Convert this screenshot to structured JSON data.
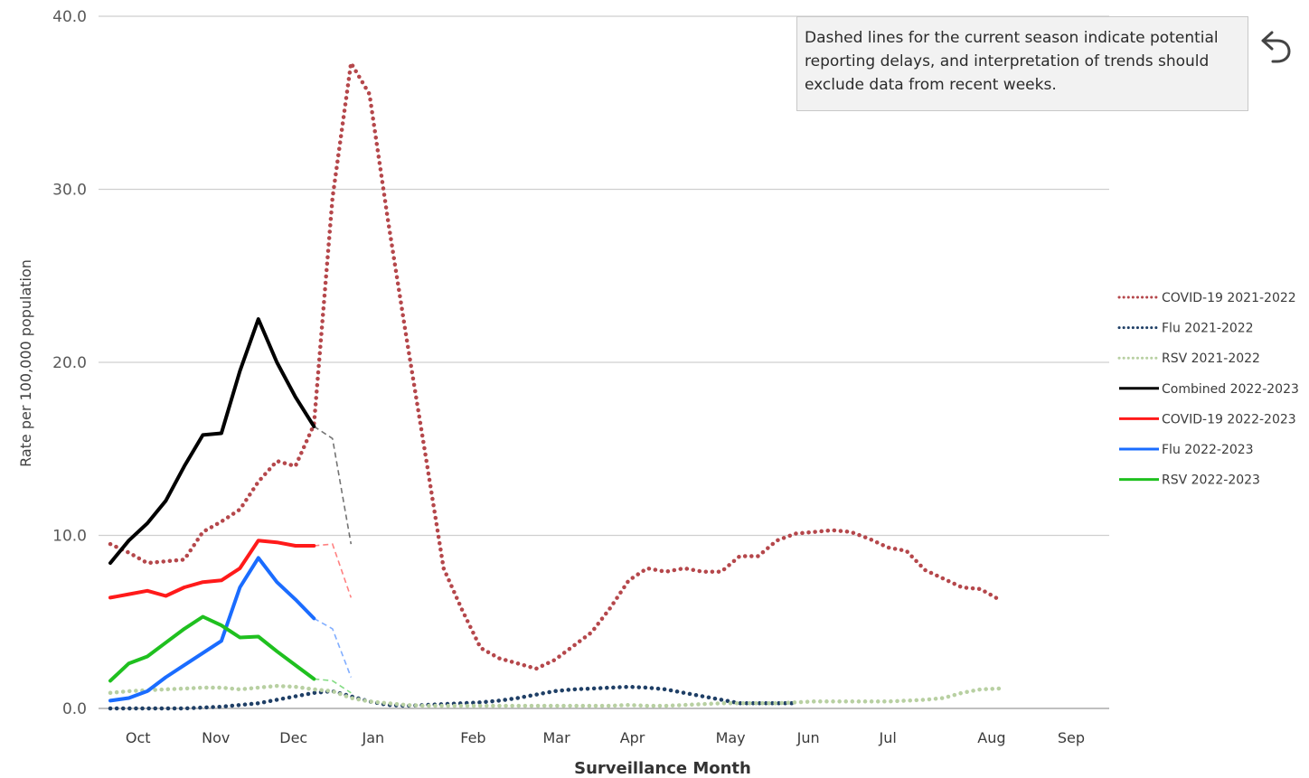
{
  "note": {
    "text": "Dashed lines for the current season indicate potential reporting delays, and interpretation of trends should exclude data from recent weeks."
  },
  "controls": {
    "back_icon": "undo-arrow-icon"
  },
  "chart_data": {
    "type": "line",
    "title": "",
    "xlabel": "Surveillance Month",
    "ylabel": "Rate per 100,000 population",
    "ylim": [
      0,
      40
    ],
    "y_ticks": [
      0,
      10,
      20,
      30,
      40
    ],
    "y_tick_labels": [
      "0.0",
      "10.0",
      "20.0",
      "30.0",
      "40.0"
    ],
    "grid": "horizontal",
    "legend_position": "right",
    "x_axis": {
      "unit": "week of surveillance season",
      "range": [
        0,
        52
      ],
      "months": [
        {
          "label": "Oct",
          "x": 1.5
        },
        {
          "label": "Nov",
          "x": 5.7
        },
        {
          "label": "Dec",
          "x": 9.9
        },
        {
          "label": "Jan",
          "x": 14.2
        },
        {
          "label": "Feb",
          "x": 19.6
        },
        {
          "label": "Mar",
          "x": 24.1
        },
        {
          "label": "Apr",
          "x": 28.2
        },
        {
          "label": "May",
          "x": 33.5
        },
        {
          "label": "Jun",
          "x": 37.7
        },
        {
          "label": "Jul",
          "x": 42.0
        },
        {
          "label": "Aug",
          "x": 47.6
        },
        {
          "label": "Sep",
          "x": 51.9
        }
      ]
    },
    "series": [
      {
        "name": "COVID-19 2021-2022",
        "color": "#b5474b",
        "style": "dotted",
        "x": [
          0,
          1,
          2,
          3,
          4,
          5,
          6,
          7,
          8,
          9,
          10,
          11,
          12,
          13,
          14,
          15,
          16,
          17,
          18,
          19,
          20,
          21,
          22,
          23,
          24,
          25,
          26,
          27,
          28,
          29,
          30,
          31,
          32,
          33,
          34,
          35,
          36,
          37,
          38,
          39,
          40,
          41,
          42,
          43,
          44,
          45,
          46,
          47,
          48,
          49,
          50,
          51,
          52
        ],
        "y": [
          9.5,
          9.0,
          8.4,
          8.5,
          8.6,
          10.2,
          10.8,
          11.5,
          13.1,
          14.3,
          14.0,
          16.4,
          29.5,
          37.3,
          35.5,
          28.2,
          21.4,
          14.8,
          8.1,
          5.7,
          3.5,
          2.9,
          2.6,
          2.3,
          2.8,
          3.6,
          4.4,
          5.8,
          7.4,
          8.1,
          7.9,
          8.1,
          7.9,
          7.9,
          8.8,
          8.8,
          9.7,
          10.1,
          10.2,
          10.3,
          10.2,
          9.8,
          9.3,
          9.1,
          8.0,
          7.5,
          7.0,
          6.9,
          6.3,
          null,
          null,
          null,
          null
        ]
      },
      {
        "name": "Flu 2021-2022",
        "color": "#1f3f66",
        "style": "dotted",
        "x": [
          0,
          1,
          2,
          3,
          4,
          5,
          6,
          7,
          8,
          9,
          10,
          11,
          12,
          13,
          14,
          15,
          16,
          17,
          18,
          19,
          20,
          21,
          22,
          23,
          24,
          25,
          26,
          27,
          28,
          29,
          30,
          31,
          32,
          33,
          34,
          35,
          36,
          37
        ],
        "y": [
          0.0,
          0.0,
          0.0,
          0.0,
          0.0,
          0.05,
          0.1,
          0.2,
          0.3,
          0.5,
          0.7,
          0.9,
          1.0,
          0.7,
          0.4,
          0.2,
          0.15,
          0.2,
          0.25,
          0.3,
          0.35,
          0.45,
          0.6,
          0.8,
          1.0,
          1.1,
          1.15,
          1.2,
          1.25,
          1.2,
          1.1,
          0.9,
          0.7,
          0.5,
          0.3,
          0.3,
          0.3,
          0.3
        ]
      },
      {
        "name": "RSV 2021-2022",
        "color": "#b8d0a2",
        "style": "dotted",
        "x": [
          0,
          1,
          2,
          3,
          4,
          5,
          6,
          7,
          8,
          9,
          10,
          11,
          12,
          13,
          14,
          15,
          16,
          17,
          18,
          19,
          20,
          21,
          22,
          23,
          24,
          25,
          26,
          27,
          28,
          29,
          30,
          31,
          32,
          33,
          34,
          35,
          36,
          37,
          38,
          39,
          40,
          41,
          42,
          43,
          44,
          45,
          46,
          47,
          48,
          49,
          50,
          51,
          52
        ],
        "y": [
          0.9,
          1.0,
          1.05,
          1.1,
          1.15,
          1.2,
          1.2,
          1.1,
          1.2,
          1.3,
          1.25,
          1.1,
          1.0,
          0.6,
          0.4,
          0.3,
          0.2,
          0.15,
          0.15,
          0.15,
          0.15,
          0.15,
          0.15,
          0.15,
          0.15,
          0.15,
          0.15,
          0.15,
          0.2,
          0.15,
          0.15,
          0.2,
          0.25,
          0.3,
          0.3,
          0.3,
          0.3,
          0.35,
          0.4,
          0.4,
          0.4,
          0.4,
          0.4,
          0.45,
          0.5,
          0.6,
          0.9,
          1.1,
          1.15,
          null,
          null,
          null,
          null
        ]
      },
      {
        "name": "Combined 2022-2023",
        "color": "#000000",
        "style": "solid",
        "x": [
          0,
          1,
          2,
          3,
          4,
          5,
          6,
          7,
          8,
          9,
          10,
          11
        ],
        "y": [
          8.4,
          9.7,
          10.7,
          12.0,
          14.0,
          15.8,
          15.9,
          19.5,
          22.5,
          20.0,
          18.0,
          16.3
        ],
        "delayed": {
          "x": [
            11,
            12,
            13
          ],
          "y": [
            16.3,
            15.6,
            9.5
          ]
        }
      },
      {
        "name": "COVID-19 2022-2023",
        "color": "#ff1a1a",
        "style": "solid",
        "x": [
          0,
          1,
          2,
          3,
          4,
          5,
          6,
          7,
          8,
          9,
          10,
          11
        ],
        "y": [
          6.4,
          6.6,
          6.8,
          6.5,
          7.0,
          7.3,
          7.4,
          8.1,
          9.7,
          9.6,
          9.4,
          9.4
        ],
        "delayed": {
          "x": [
            11,
            12,
            13
          ],
          "y": [
            9.4,
            9.5,
            6.4
          ]
        }
      },
      {
        "name": "Flu 2022-2023",
        "color": "#1a6cff",
        "style": "solid",
        "x": [
          0,
          1,
          2,
          3,
          4,
          5,
          6,
          7,
          8,
          9,
          10,
          11
        ],
        "y": [
          0.45,
          0.6,
          1.0,
          1.8,
          2.5,
          3.2,
          3.9,
          7.0,
          8.7,
          7.3,
          6.3,
          5.2
        ],
        "delayed": {
          "x": [
            11,
            12,
            13
          ],
          "y": [
            5.2,
            4.6,
            1.8
          ]
        }
      },
      {
        "name": "RSV 2022-2023",
        "color": "#1fc01f",
        "style": "solid",
        "x": [
          0,
          1,
          2,
          3,
          4,
          5,
          6,
          7,
          8,
          9,
          10,
          11
        ],
        "y": [
          1.6,
          2.6,
          3.0,
          3.8,
          4.6,
          5.3,
          4.8,
          4.1,
          4.15,
          3.3,
          2.5,
          1.7
        ],
        "delayed": {
          "x": [
            11,
            12,
            13
          ],
          "y": [
            1.7,
            1.6,
            0.9
          ]
        }
      }
    ]
  }
}
